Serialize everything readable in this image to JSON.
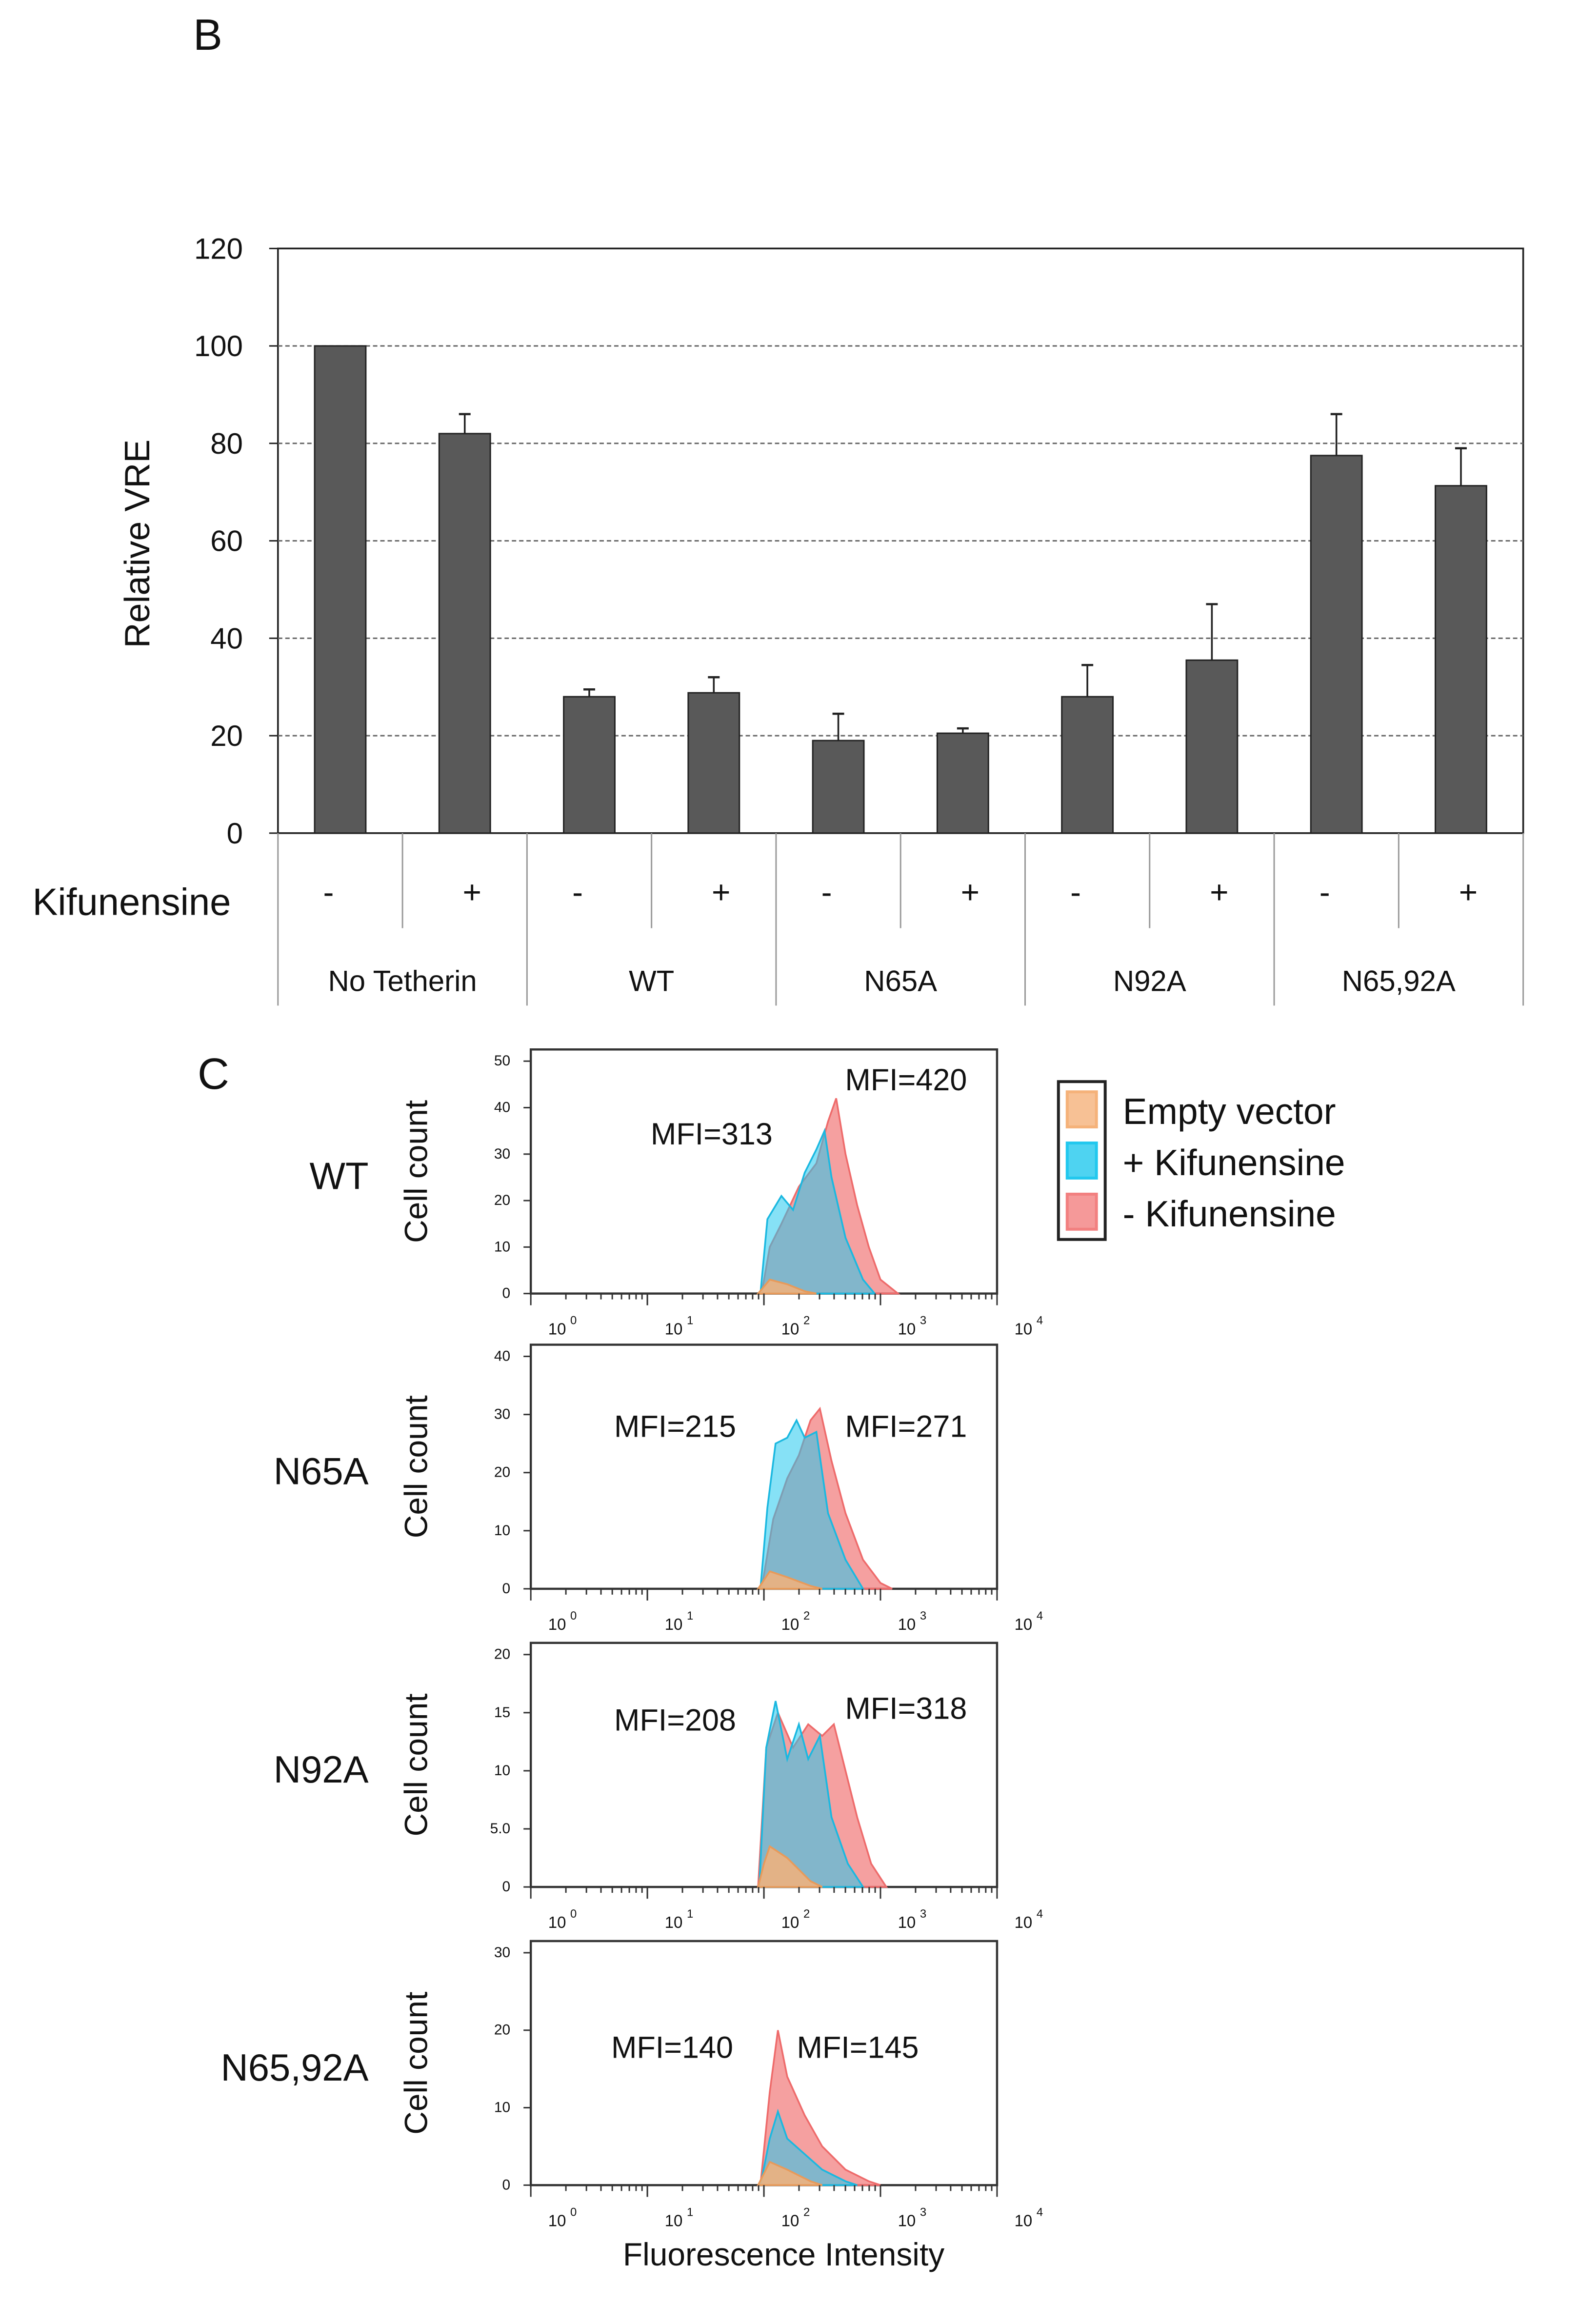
{
  "panel_labels": {
    "b": "B",
    "c": "C"
  },
  "chart_data": [
    {
      "type": "bar",
      "title": "",
      "ylabel": "Relative VRE",
      "ylim": [
        0,
        120
      ],
      "yticks": [
        "0",
        "20",
        "40",
        "60",
        "80",
        "100",
        "120"
      ],
      "grid": true,
      "row_label": "Kifunensine",
      "bar_color": "#595959",
      "groups": [
        "No Tetherin",
        "WT",
        "N65A",
        "N92A",
        "N65,92A"
      ],
      "categories": [
        "-",
        "+",
        "-",
        "+",
        "-",
        "+",
        "-",
        "+",
        "-",
        "+"
      ],
      "values": [
        100,
        82,
        28,
        28.8,
        19,
        20.5,
        28,
        35.5,
        77.5,
        71.3
      ],
      "errors": [
        0,
        4,
        1.5,
        3.2,
        5.5,
        1,
        6.5,
        11.5,
        8.5,
        7.7
      ]
    },
    {
      "type": "area",
      "xlabel": "Fluorescence Intensity",
      "ylabel": "Cell count",
      "x_scale": "log10",
      "xticks": [
        "0",
        "1",
        "2",
        "3",
        "4"
      ],
      "legend": {
        "position": "top-right",
        "entries": [
          {
            "label": "Empty vector",
            "color": "#f5b27a"
          },
          {
            "label": "+ Kifunensine",
            "color": "#22c8ee"
          },
          {
            "label": "-  Kifunensine",
            "color": "#f28080"
          }
        ]
      },
      "panels": [
        {
          "name": "WT",
          "ylim": [
            0,
            50
          ],
          "yticks": [
            "0",
            "10",
            "20",
            "30",
            "40",
            "50"
          ],
          "mfi_plus": "MFI=313",
          "mfi_minus": "MFI=420",
          "series": {
            "empty": [
              [
                1.95,
                0
              ],
              [
                2.05,
                3
              ],
              [
                2.2,
                2
              ],
              [
                2.35,
                0.5
              ],
              [
                2.45,
                0
              ]
            ],
            "minus": [
              [
                1.98,
                0
              ],
              [
                2.05,
                10
              ],
              [
                2.15,
                15
              ],
              [
                2.3,
                23
              ],
              [
                2.45,
                28
              ],
              [
                2.55,
                37
              ],
              [
                2.62,
                42
              ],
              [
                2.7,
                30
              ],
              [
                2.8,
                19
              ],
              [
                2.9,
                10
              ],
              [
                3.0,
                3
              ],
              [
                3.15,
                0
              ]
            ],
            "plus": [
              [
                1.97,
                0
              ],
              [
                2.03,
                16
              ],
              [
                2.15,
                21
              ],
              [
                2.25,
                18
              ],
              [
                2.35,
                26
              ],
              [
                2.45,
                31
              ],
              [
                2.52,
                35
              ],
              [
                2.58,
                25
              ],
              [
                2.7,
                12
              ],
              [
                2.85,
                3
              ],
              [
                2.95,
                0
              ]
            ]
          }
        },
        {
          "name": "N65A",
          "ylim": [
            0,
            40
          ],
          "yticks": [
            "0",
            "10",
            "20",
            "30",
            "40"
          ],
          "mfi_plus": "MFI=215",
          "mfi_minus": "MFI=271",
          "series": {
            "empty": [
              [
                1.95,
                0
              ],
              [
                2.05,
                3
              ],
              [
                2.2,
                2
              ],
              [
                2.4,
                0.5
              ],
              [
                2.5,
                0
              ]
            ],
            "minus": [
              [
                1.98,
                0
              ],
              [
                2.08,
                12
              ],
              [
                2.2,
                19
              ],
              [
                2.3,
                23
              ],
              [
                2.4,
                29
              ],
              [
                2.48,
                31
              ],
              [
                2.58,
                22
              ],
              [
                2.7,
                13
              ],
              [
                2.85,
                5
              ],
              [
                3.0,
                1
              ],
              [
                3.1,
                0
              ]
            ],
            "plus": [
              [
                1.97,
                0
              ],
              [
                2.03,
                14
              ],
              [
                2.1,
                25
              ],
              [
                2.2,
                26
              ],
              [
                2.28,
                29
              ],
              [
                2.35,
                26
              ],
              [
                2.45,
                27
              ],
              [
                2.55,
                13
              ],
              [
                2.7,
                5
              ],
              [
                2.85,
                0
              ]
            ]
          }
        },
        {
          "name": "N92A",
          "ylim": [
            0,
            20
          ],
          "yticks": [
            "0",
            "5.0",
            "10",
            "15",
            "20"
          ],
          "mfi_plus": "MFI=208",
          "mfi_minus": "MFI=318",
          "series": {
            "empty": [
              [
                1.95,
                0
              ],
              [
                2.0,
                2
              ],
              [
                2.05,
                3.5
              ],
              [
                2.2,
                2.5
              ],
              [
                2.4,
                0.5
              ],
              [
                2.5,
                0
              ]
            ],
            "minus": [
              [
                1.95,
                0
              ],
              [
                2.02,
                12
              ],
              [
                2.12,
                15
              ],
              [
                2.25,
                12
              ],
              [
                2.38,
                14
              ],
              [
                2.5,
                13
              ],
              [
                2.6,
                14
              ],
              [
                2.7,
                10
              ],
              [
                2.8,
                6
              ],
              [
                2.92,
                2
              ],
              [
                3.05,
                0
              ]
            ],
            "plus": [
              [
                1.96,
                0
              ],
              [
                2.02,
                12
              ],
              [
                2.1,
                16
              ],
              [
                2.2,
                11
              ],
              [
                2.3,
                14
              ],
              [
                2.38,
                11
              ],
              [
                2.48,
                13
              ],
              [
                2.58,
                6
              ],
              [
                2.72,
                2
              ],
              [
                2.85,
                0
              ]
            ]
          }
        },
        {
          "name": "N65,92A",
          "ylim": [
            0,
            30
          ],
          "yticks": [
            "0",
            "10",
            "20",
            "30"
          ],
          "mfi_plus": "MFI=140",
          "mfi_minus": "MFI=145",
          "series": {
            "empty": [
              [
                1.95,
                0
              ],
              [
                2.05,
                3
              ],
              [
                2.2,
                2
              ],
              [
                2.4,
                0.5
              ],
              [
                2.5,
                0
              ]
            ],
            "minus": [
              [
                1.97,
                0
              ],
              [
                2.05,
                12
              ],
              [
                2.12,
                20
              ],
              [
                2.2,
                14
              ],
              [
                2.35,
                9
              ],
              [
                2.5,
                5
              ],
              [
                2.7,
                2
              ],
              [
                2.9,
                0.5
              ],
              [
                3.0,
                0
              ]
            ],
            "plus": [
              [
                1.97,
                0
              ],
              [
                2.05,
                6
              ],
              [
                2.12,
                9.5
              ],
              [
                2.2,
                6
              ],
              [
                2.35,
                4
              ],
              [
                2.5,
                2
              ],
              [
                2.7,
                0.5
              ],
              [
                2.8,
                0
              ]
            ]
          }
        }
      ]
    }
  ]
}
